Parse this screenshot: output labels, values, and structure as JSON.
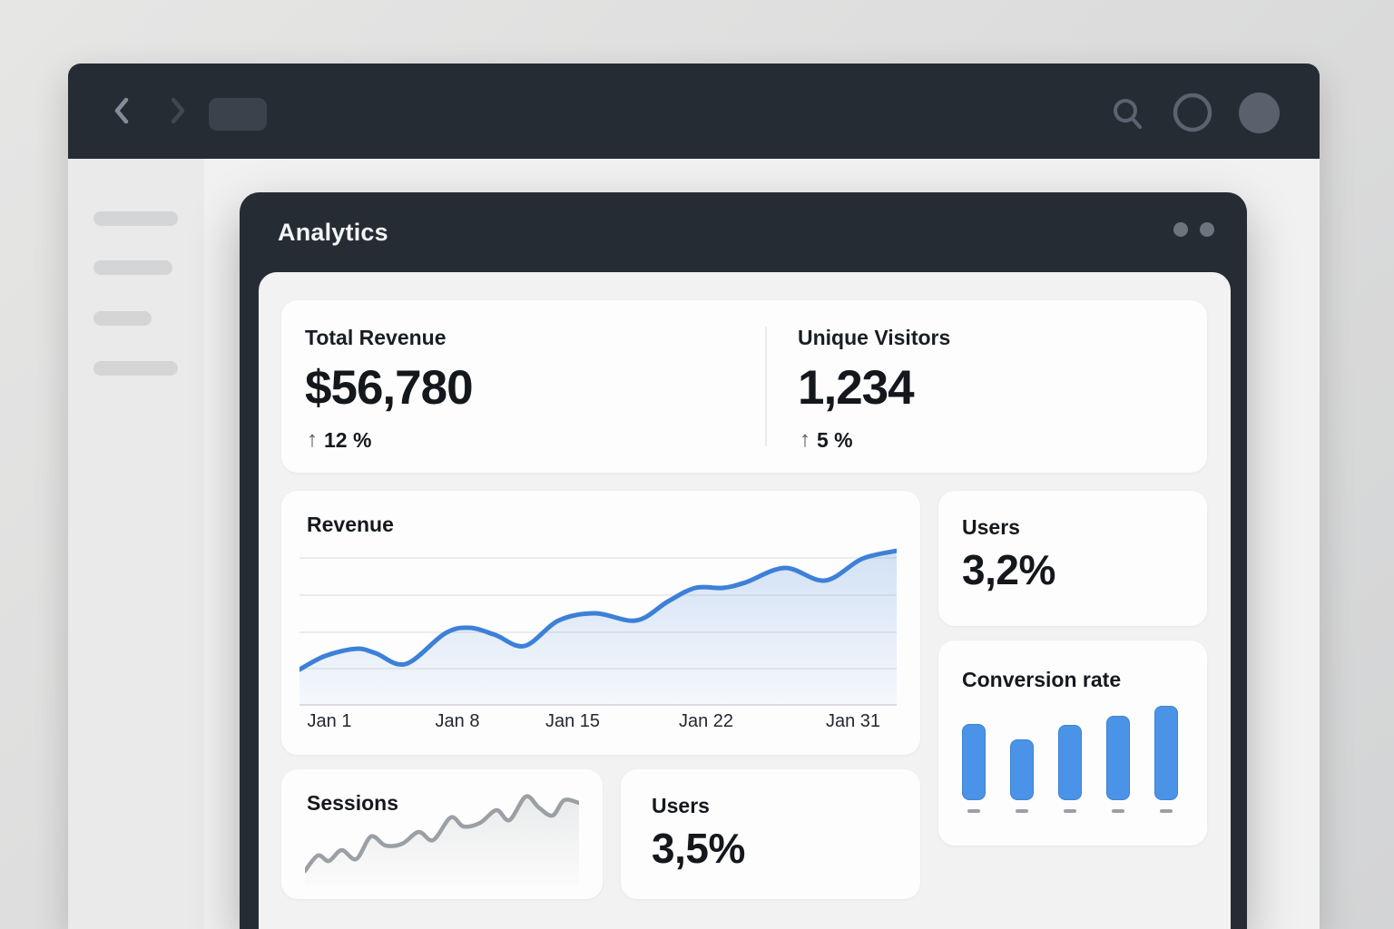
{
  "colors": {
    "chrome_dark": "#262c34",
    "accent_blue": "#3d80d8",
    "bar_blue": "#4b93e6",
    "muted_gray": "#9aa0a5",
    "panel_bg": "#f1f2f1"
  },
  "browser": {
    "back_icon": "chevron-left",
    "forward_icon": "chevron-right",
    "tab_icon": "tab-placeholder",
    "search_icon": "magnifier",
    "status_icon": "circle-outline",
    "avatar_icon": "user-avatar",
    "sidebar_placeholder_items": 4
  },
  "window": {
    "title": "Analytics",
    "control_dots": 2
  },
  "stat_cards": [
    {
      "label": "Total Revenue",
      "value": "$56,780",
      "delta": "12 %",
      "trend": "up",
      "trend_icon": "arrow-up"
    },
    {
      "label": "Unique Visitors",
      "value": "1,234",
      "delta": "5 %",
      "trend": "up",
      "trend_icon": "arrow-up"
    }
  ],
  "kpi_cards": [
    {
      "label": "Users",
      "value": "3,2%"
    },
    {
      "label": "Users",
      "value": "3,5%"
    }
  ],
  "chart_data": [
    {
      "id": "revenue",
      "type": "line",
      "title": "Revenue",
      "x_ticks": [
        "Jan 1",
        "Jan 8",
        "Jan 15",
        "Jan 22",
        "Jan 31"
      ],
      "tick_positions_pct": [
        5,
        26.4,
        45.7,
        68.1,
        92.7
      ],
      "ylim": [
        0,
        100
      ],
      "grid": true,
      "gridlines": 4,
      "line_color": "#3d80d8",
      "fill": "gradient-blue",
      "points_pct": [
        [
          0,
          22.7
        ],
        [
          4.3,
          31.4
        ],
        [
          9.5,
          36.0
        ],
        [
          12.8,
          33.1
        ],
        [
          17.8,
          26.2
        ],
        [
          24.4,
          45.9
        ],
        [
          28.5,
          49.4
        ],
        [
          32.8,
          44.8
        ],
        [
          37.7,
          37.8
        ],
        [
          43.4,
          54.1
        ],
        [
          49.5,
          58.7
        ],
        [
          56.4,
          54.1
        ],
        [
          61.7,
          66.3
        ],
        [
          66.3,
          75.0
        ],
        [
          70.9,
          75.0
        ],
        [
          74.7,
          78.5
        ],
        [
          81.3,
          87.8
        ],
        [
          88.0,
          79.7
        ],
        [
          94.2,
          93.6
        ],
        [
          100,
          98.8
        ]
      ]
    },
    {
      "id": "conversion",
      "type": "bar",
      "title": "Conversion rate",
      "values": [
        81,
        64,
        80,
        89,
        100
      ],
      "ylim": [
        0,
        100
      ],
      "grid": false,
      "bar_color": "#4b93e6",
      "axis_marks": "dash-per-bar"
    },
    {
      "id": "sessions",
      "type": "line",
      "title": "Sessions",
      "ylim": [
        0,
        100
      ],
      "grid": false,
      "line_color": "#9aa0a5",
      "fill": "gradient-gray",
      "points_pct": [
        [
          0,
          16
        ],
        [
          4.7,
          33
        ],
        [
          8.7,
          27
        ],
        [
          13.4,
          39
        ],
        [
          18.7,
          29
        ],
        [
          24.1,
          54
        ],
        [
          29.4,
          44
        ],
        [
          35.5,
          46
        ],
        [
          41.5,
          59
        ],
        [
          46.8,
          50
        ],
        [
          53.2,
          75
        ],
        [
          57.9,
          65
        ],
        [
          63.9,
          69
        ],
        [
          69.9,
          83
        ],
        [
          74.6,
          72
        ],
        [
          80.6,
          98
        ],
        [
          85.3,
          86
        ],
        [
          90.3,
          77
        ],
        [
          94.6,
          94
        ],
        [
          100,
          91
        ]
      ]
    }
  ]
}
